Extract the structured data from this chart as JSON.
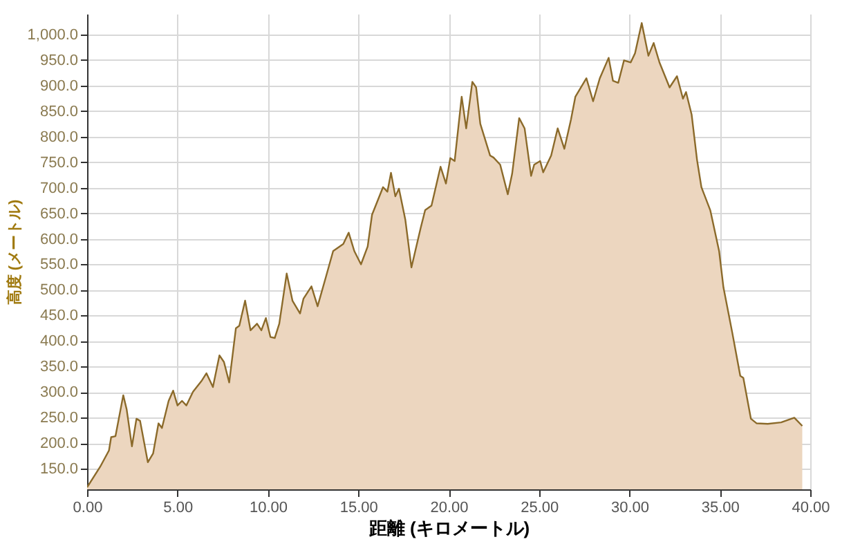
{
  "chart_data": {
    "type": "area",
    "xlabel": "距離 (キロメートル)",
    "ylabel": "高度 (メートル)",
    "x": [
      0,
      0.72,
      1.21,
      1.33,
      1.57,
      2.0,
      2.19,
      2.48,
      2.73,
      2.93,
      3.36,
      3.65,
      3.95,
      4.14,
      4.51,
      4.76,
      5.0,
      5.25,
      5.49,
      5.86,
      6.35,
      6.6,
      6.96,
      7.32,
      7.57,
      7.86,
      8.23,
      8.42,
      8.74,
      9.04,
      9.4,
      9.64,
      9.89,
      10.14,
      10.38,
      10.63,
      11.04,
      11.36,
      11.78,
      11.97,
      12.41,
      12.75,
      13.19,
      13.61,
      14.17,
      14.47,
      14.78,
      15.15,
      15.52,
      15.76,
      16.37,
      16.61,
      16.81,
      17.05,
      17.25,
      17.6,
      17.94,
      18.45,
      18.7,
      19.05,
      19.55,
      19.85,
      20.09,
      20.33,
      20.72,
      20.97,
      21.31,
      21.52,
      21.75,
      22.29,
      22.48,
      22.85,
      23.27,
      23.51,
      23.9,
      24.2,
      24.56,
      24.73,
      25.06,
      25.23,
      25.67,
      26.03,
      26.4,
      26.77,
      27.01,
      27.62,
      27.99,
      28.36,
      28.85,
      29.09,
      29.38,
      29.7,
      30.07,
      30.31,
      30.68,
      31.05,
      31.34,
      31.66,
      32.22,
      32.63,
      32.96,
      33.13,
      33.44,
      33.74,
      33.98,
      34.47,
      34.96,
      35.2,
      35.69,
      36.13,
      36.3,
      36.72,
      37.04,
      37.65,
      38.39,
      39.12,
      39.56
    ],
    "series": [
      {
        "color": "#8b6a2a",
        "values": [
          114,
          154,
          186,
          212,
          214,
          294,
          266,
          194,
          248,
          244,
          163,
          180,
          239,
          230,
          283,
          303,
          274,
          283,
          274,
          301,
          323,
          337,
          310,
          372,
          359,
          319,
          425,
          430,
          479,
          421,
          434,
          421,
          445,
          408,
          406,
          434,
          532,
          479,
          454,
          483,
          507,
          468,
          523,
          576,
          590,
          612,
          576,
          550,
          585,
          647,
          701,
          692,
          729,
          683,
          698,
          638,
          544,
          621,
          656,
          665,
          741,
          708,
          758,
          752,
          878,
          816,
          907,
          896,
          825,
          763,
          759,
          745,
          687,
          727,
          836,
          816,
          723,
          745,
          752,
          730,
          763,
          816,
          776,
          834,
          878,
          914,
          869,
          914,
          954,
          909,
          905,
          949,
          945,
          963,
          1022,
          958,
          983,
          945,
          896,
          918,
          874,
          887,
          843,
          754,
          701,
          656,
          576,
          505,
          416,
          332,
          328,
          248,
          239,
          238,
          241,
          250,
          234
        ]
      }
    ],
    "xlim": [
      0,
      40
    ],
    "ylim": [
      110,
      1040
    ],
    "xticks": [
      {
        "value": 0,
        "label": "0.00"
      },
      {
        "value": 5,
        "label": "5.00"
      },
      {
        "value": 10,
        "label": "10.00"
      },
      {
        "value": 15,
        "label": "15.00"
      },
      {
        "value": 20,
        "label": "20.00"
      },
      {
        "value": 25,
        "label": "25.00"
      },
      {
        "value": 30,
        "label": "30.00"
      },
      {
        "value": 35,
        "label": "35.00"
      },
      {
        "value": 40,
        "label": "40.00"
      }
    ],
    "yticks": [
      {
        "value": 150,
        "label": "150.0"
      },
      {
        "value": 200,
        "label": "200.0"
      },
      {
        "value": 250,
        "label": "250.0"
      },
      {
        "value": 300,
        "label": "300.0"
      },
      {
        "value": 350,
        "label": "350.0"
      },
      {
        "value": 400,
        "label": "400.0"
      },
      {
        "value": 450,
        "label": "450.0"
      },
      {
        "value": 500,
        "label": "500.0"
      },
      {
        "value": 550,
        "label": "550.0"
      },
      {
        "value": 600,
        "label": "600.0"
      },
      {
        "value": 650,
        "label": "650.0"
      },
      {
        "value": 700,
        "label": "700.0"
      },
      {
        "value": 750,
        "label": "750.0"
      },
      {
        "value": 800,
        "label": "800.0"
      },
      {
        "value": 850,
        "label": "850.0"
      },
      {
        "value": 900,
        "label": "900.0"
      },
      {
        "value": 950,
        "label": "950.0"
      },
      {
        "value": 1000,
        "label": "1,000.0"
      }
    ],
    "grid": true
  }
}
